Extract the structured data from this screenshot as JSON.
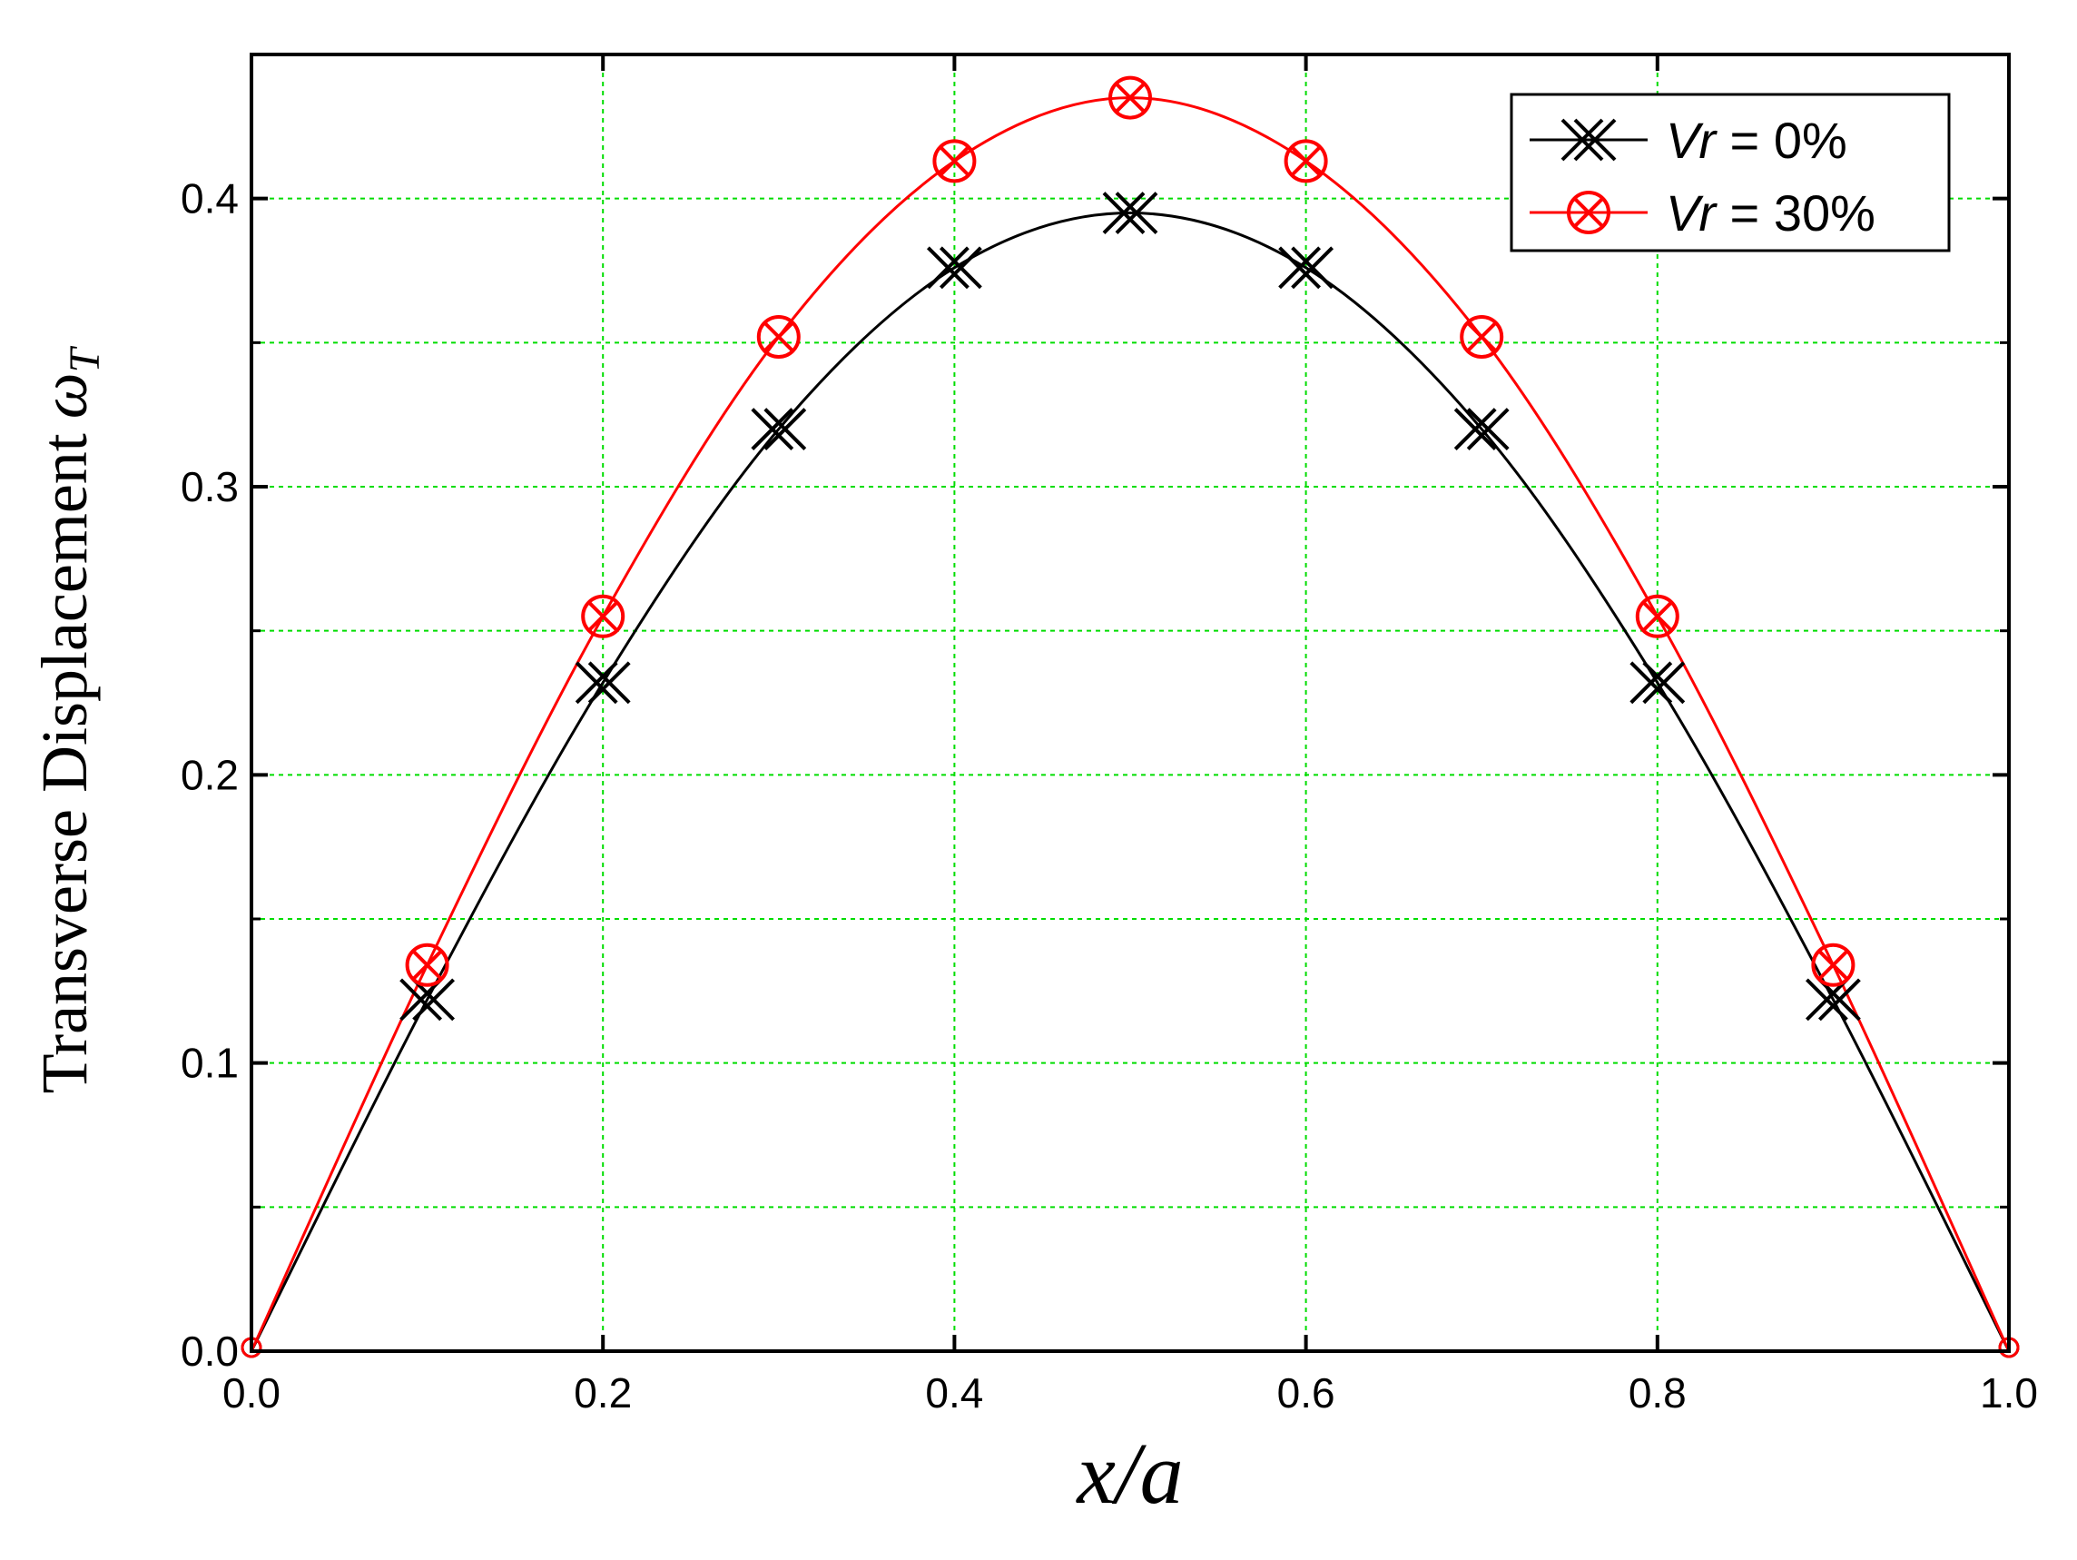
{
  "chart_data": {
    "type": "line",
    "xlabel": "x/a",
    "ylabel": "Transverse Displacement",
    "ylabel_symbol": "ω",
    "ylabel_subscript": "T",
    "xlim": [
      0.0,
      1.0
    ],
    "ylim": [
      0.0,
      0.45
    ],
    "xticks": [
      0.0,
      0.2,
      0.4,
      0.6,
      0.8,
      1.0
    ],
    "xtick_labels": [
      "0.0",
      "0.2",
      "0.4",
      "0.6",
      "0.8",
      "1.0"
    ],
    "yticks": [
      0.0,
      0.1,
      0.2,
      0.3,
      0.4
    ],
    "ytick_labels": [
      "0.0",
      "0.1",
      "0.2",
      "0.3",
      "0.4"
    ],
    "grid": true,
    "grid_color": "#00dd00",
    "legend_position": "top-right",
    "series": [
      {
        "name_prefix": "Vr",
        "name_suffix": " = 0%",
        "color": "#000000",
        "marker": "double-x",
        "x": [
          0.0,
          0.1,
          0.2,
          0.3,
          0.4,
          0.5,
          0.6,
          0.7,
          0.8,
          0.9,
          1.0
        ],
        "y": [
          0.0,
          0.122,
          0.232,
          0.32,
          0.376,
          0.395,
          0.376,
          0.32,
          0.232,
          0.122,
          0.0
        ]
      },
      {
        "name_prefix": "Vr",
        "name_suffix": " = 30%",
        "color": "#ff0000",
        "marker": "circle-x",
        "x": [
          0.0,
          0.1,
          0.2,
          0.3,
          0.4,
          0.5,
          0.6,
          0.7,
          0.8,
          0.9,
          1.0
        ],
        "y": [
          0.0,
          0.134,
          0.255,
          0.352,
          0.413,
          0.435,
          0.413,
          0.352,
          0.255,
          0.134,
          0.0
        ]
      }
    ]
  }
}
